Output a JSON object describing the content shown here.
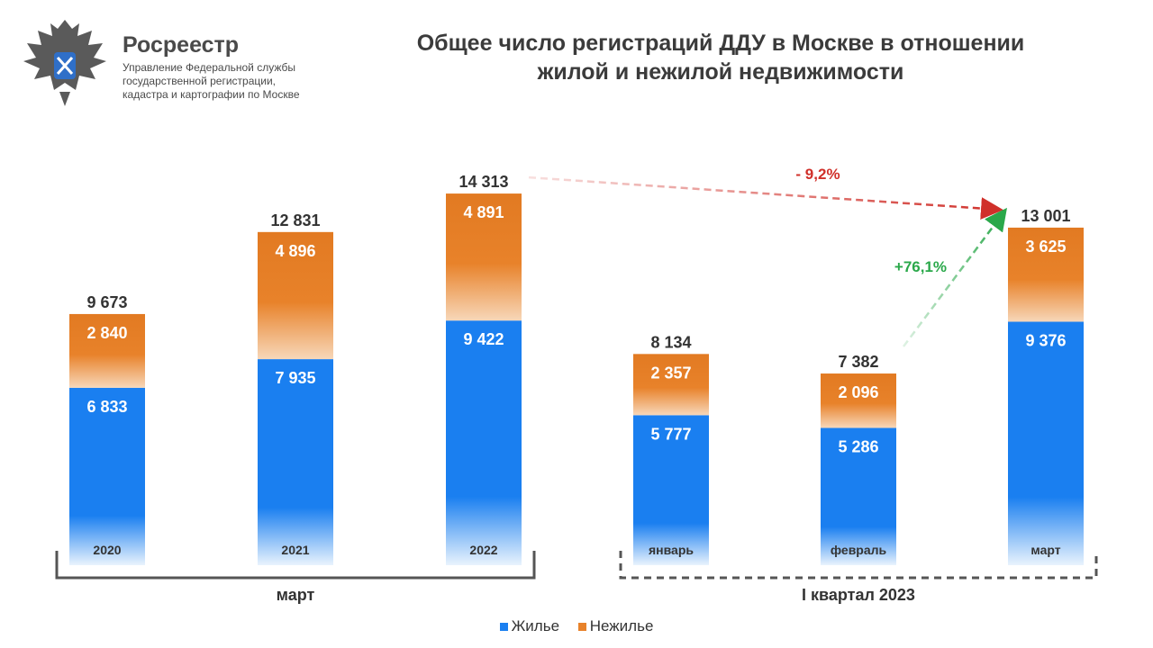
{
  "logo": {
    "name": "Росреестр",
    "subtitle_lines": [
      "Управление Федеральной службы",
      "государственной регистрации,",
      "кадастра и картографии по Москве"
    ]
  },
  "title_lines": [
    "Общее число регистраций ДДУ в Москве в отношении",
    "жилой и нежилой недвижимости"
  ],
  "colors": {
    "residential": "#1a7ff0",
    "nonresidential": "#e8822a",
    "decrease": "#d0302a",
    "increase": "#2aa84a"
  },
  "chart_data": {
    "type": "bar",
    "stacked": true,
    "categories": [
      "2020",
      "2021",
      "2022",
      "январь",
      "февраль",
      "март"
    ],
    "series": [
      {
        "name": "Жилье",
        "values": [
          6833,
          7935,
          9422,
          5777,
          5286,
          9376
        ]
      },
      {
        "name": "Нежилье",
        "values": [
          2840,
          4896,
          4891,
          2357,
          2096,
          3625
        ]
      }
    ],
    "value_labels": {
      "residential": [
        "6 833",
        "7 935",
        "9 422",
        "5 777",
        "5 286",
        "9 376"
      ],
      "nonresidential": [
        "2 840",
        "4 896",
        "4 891",
        "2 357",
        "2 096",
        "3 625"
      ],
      "totals": [
        "9 673",
        "12 831",
        "14 313",
        "8 134",
        "7 382",
        "13 001"
      ]
    },
    "groups": [
      {
        "label": "март",
        "from": 0,
        "to": 2,
        "style": "solid"
      },
      {
        "label": "I квартал 2023",
        "from": 3,
        "to": 5,
        "style": "dashed"
      }
    ],
    "annotations": [
      {
        "text": "- 9,2%",
        "from": 2,
        "to": 5,
        "kind": "decrease"
      },
      {
        "text": "+76,1%",
        "from": 4,
        "to": 5,
        "kind": "increase"
      }
    ],
    "legend": {
      "position": "bottom"
    }
  }
}
